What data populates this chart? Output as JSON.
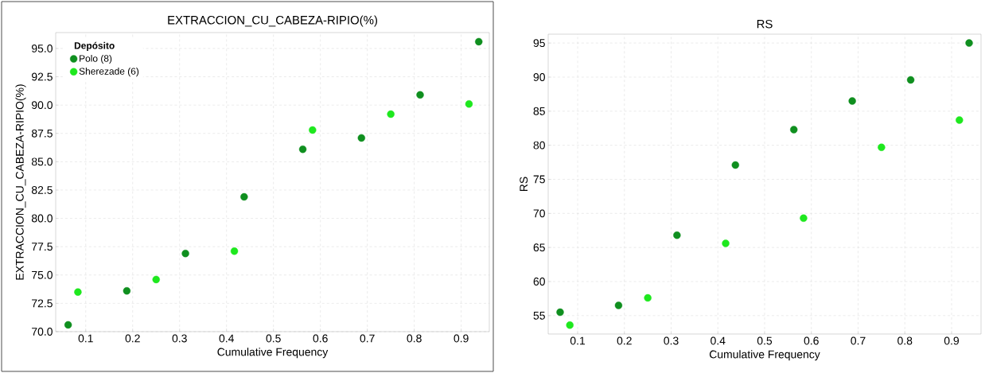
{
  "chart_data": [
    {
      "type": "scatter",
      "title": "EXTRACCION_CU_CABEZA-RIPIO(%)",
      "xlabel": "Cumulative Frequency",
      "ylabel": "EXTRACCION_CU_CABEZA-RIPIO(%)",
      "legend_title": "Depósito",
      "legend": "top left",
      "grid": true,
      "marker": "circle",
      "xlim": [
        0.036,
        0.96
      ],
      "ylim": [
        70,
        96.4
      ],
      "xticks": [
        0.1,
        0.2,
        0.3,
        0.4,
        0.5,
        0.6,
        0.7,
        0.8,
        0.9
      ],
      "yticks": [
        {
          "value": 70,
          "label": "70.0"
        },
        72.5,
        {
          "value": 75,
          "label": "75.0"
        },
        77.5,
        {
          "value": 80,
          "label": "80.0"
        },
        82.5,
        {
          "value": 85,
          "label": "85.0"
        },
        87.5,
        {
          "value": 90,
          "label": "90.0"
        },
        92.5,
        {
          "value": 95,
          "label": "95.0"
        }
      ],
      "series": [
        {
          "name": "Polo (8)",
          "color": "#0f8f1f",
          "x": [
            0.0625,
            0.1875,
            0.3125,
            0.4375,
            0.5625,
            0.6875,
            0.8125,
            0.9375
          ],
          "values": [
            70.6,
            73.6,
            76.9,
            81.9,
            86.1,
            87.1,
            90.9,
            95.6
          ]
        },
        {
          "name": "Sherezade (6)",
          "color": "#1ee81e",
          "x": [
            0.0833,
            0.25,
            0.4167,
            0.5833,
            0.75,
            0.9167
          ],
          "values": [
            73.5,
            74.6,
            77.1,
            87.8,
            89.2,
            90.1
          ]
        }
      ]
    },
    {
      "type": "scatter",
      "title": "RS",
      "xlabel": "Cumulative Frequency",
      "ylabel": "RS",
      "grid": true,
      "marker": "circle",
      "xlim": [
        0.037,
        0.963
      ],
      "ylim": [
        52.3,
        96.3
      ],
      "xticks": [
        0.1,
        0.2,
        0.3,
        0.4,
        0.5,
        0.6,
        0.7,
        0.8,
        0.9
      ],
      "yticks": [
        55,
        60,
        65,
        70,
        75,
        80,
        85,
        90,
        95
      ],
      "series": [
        {
          "color": "#0f8f1f",
          "x": [
            0.0625,
            0.1875,
            0.3125,
            0.4375,
            0.5625,
            0.6875,
            0.8125,
            0.9375
          ],
          "values": [
            55.5,
            56.5,
            66.8,
            77.1,
            82.3,
            86.5,
            89.6,
            95.0
          ]
        },
        {
          "color": "#1ee81e",
          "x": [
            0.0833,
            0.25,
            0.4167,
            0.5833,
            0.75,
            0.9167
          ],
          "values": [
            53.6,
            57.6,
            65.6,
            69.3,
            79.7,
            83.7
          ]
        }
      ]
    }
  ]
}
